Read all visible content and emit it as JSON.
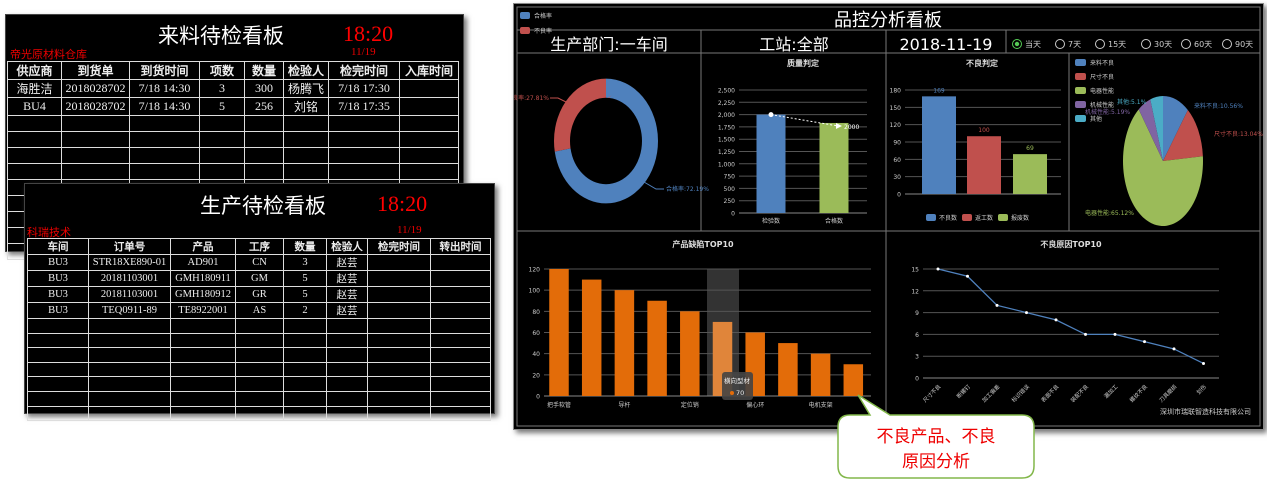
{
  "incoming_board": {
    "title": "来料待检看板",
    "time": "18:20",
    "warehouse": "帝光原材料仓库",
    "date": "11/19",
    "columns": [
      "供应商",
      "到货单",
      "到货时间",
      "项数",
      "数量",
      "检验人",
      "检完时间",
      "入库时间"
    ],
    "rows": [
      [
        "海胜洁",
        "2018028702",
        "7/18 14:30",
        "3",
        "300",
        "杨腾飞",
        "7/18 17:30",
        ""
      ],
      [
        "BU4",
        "2018028702",
        "7/18 14:30",
        "5",
        "256",
        "刘铭",
        "7/18 17:35",
        ""
      ]
    ]
  },
  "production_board": {
    "title": "生产待检看板",
    "time": "18:20",
    "company": "科瑞技术",
    "date": "11/19",
    "columns": [
      "车间",
      "订单号",
      "产品",
      "工序",
      "数量",
      "检验人",
      "检完时间",
      "转出时间"
    ],
    "rows": [
      [
        "BU3",
        "STR18XE890-01",
        "AD901",
        "CN",
        "3",
        "赵芸",
        "",
        ""
      ],
      [
        "BU3",
        "20181103001",
        "GMH180911",
        "GM",
        "5",
        "赵芸",
        "",
        ""
      ],
      [
        "BU3",
        "20181103001",
        "GMH180912",
        "GR",
        "5",
        "赵芸",
        "",
        ""
      ],
      [
        "BU3",
        "TEQ0911-89",
        "TE8922001",
        "AS",
        "2",
        "赵芸",
        "",
        ""
      ]
    ]
  },
  "dashboard": {
    "title": "品控分析看板",
    "department": "生产部门:一车间",
    "station": "工站:全部",
    "date": "2018-11-19",
    "ranges": [
      {
        "label": "当天",
        "selected": true
      },
      {
        "label": "7天",
        "selected": false
      },
      {
        "label": "15天",
        "selected": false
      },
      {
        "label": "30天",
        "selected": false
      },
      {
        "label": "60天",
        "selected": false
      },
      {
        "label": "90天",
        "selected": false
      }
    ],
    "footer": "深圳市瑞联智造科技有限公司"
  },
  "chart_data": [
    {
      "type": "pie",
      "donut": true,
      "legend": "top-left",
      "slices": [
        {
          "name": "合格率",
          "value": 72.19,
          "label": "合格率:72.19%",
          "color": "#4f81bd"
        },
        {
          "name": "不良率",
          "value": 27.81,
          "label": "不良率:27.81%",
          "color": "#c0504d"
        }
      ]
    },
    {
      "type": "bar",
      "title": "质量判定",
      "categories": [
        "检验数",
        "合格数"
      ],
      "values": [
        2000,
        1830
      ],
      "colors": [
        "#4f81bd",
        "#9bbb59"
      ],
      "ylim": [
        0,
        2500
      ],
      "yticks": [
        "0",
        "250",
        "500",
        "750",
        "1,000",
        "1,250",
        "1,500",
        "1,750",
        "2,000",
        "2,250",
        "2,500"
      ],
      "annotation": "2000",
      "grid": true
    },
    {
      "type": "bar",
      "title": "不良判定",
      "categories": [
        "不良数",
        "返工数",
        "报废数"
      ],
      "values": [
        169,
        100,
        69
      ],
      "data_labels": [
        "169",
        "100",
        "69"
      ],
      "colors": [
        "#4f81bd",
        "#c0504d",
        "#9bbb59"
      ],
      "ylim": [
        0,
        180
      ],
      "yticks": [
        "0",
        "30",
        "60",
        "90",
        "120",
        "150",
        "180"
      ],
      "legend": "bottom",
      "grid": true
    },
    {
      "type": "pie",
      "legend": "top-left",
      "slices": [
        {
          "name": "来料不良",
          "value": 10.56,
          "label": "来料不良:10.56%",
          "color": "#4f81bd"
        },
        {
          "name": "尺寸不良",
          "value": 13.04,
          "label": "尺寸不良:13.04%",
          "color": "#c0504d"
        },
        {
          "name": "电器性能",
          "value": 65.12,
          "label": "电器性能:65.12%",
          "color": "#9bbb59"
        },
        {
          "name": "机械性能",
          "value": 5.19,
          "label": "机械性能:5.19%",
          "color": "#8064a2"
        },
        {
          "name": "其他",
          "value": 5.1,
          "label": "其他:5.1%",
          "color": "#4bacc6"
        }
      ]
    },
    {
      "type": "bar",
      "title": "产品缺陷TOP10",
      "categories": [
        "把手软管",
        "",
        "导杆",
        "",
        "定位销",
        "横向型材",
        "偏心环",
        "",
        "电机支架",
        ""
      ],
      "values": [
        120,
        110,
        100,
        90,
        80,
        70,
        60,
        50,
        40,
        30
      ],
      "color": "#e36c09",
      "ylim": [
        0,
        120
      ],
      "yticks": [
        "0",
        "20",
        "40",
        "60",
        "80",
        "100",
        "120"
      ],
      "highlight_index": 5,
      "tooltip": {
        "title": "横向型材",
        "value": "70"
      },
      "grid": true
    },
    {
      "type": "line",
      "title": "不良原因TOP10",
      "categories": [
        "尺寸不良",
        "断螺钉",
        "加工偏差",
        "标识错误",
        "表面不良",
        "装配不良",
        "漏加工",
        "螺纹不良",
        "刀具磨损",
        "划伤"
      ],
      "values": [
        15,
        14,
        10,
        9,
        8,
        6,
        6,
        5,
        4,
        2
      ],
      "color": "#4f81bd",
      "ylim": [
        0,
        15
      ],
      "yticks": [
        "0",
        "3",
        "6",
        "9",
        "12",
        "15"
      ],
      "grid": true
    }
  ],
  "callout": {
    "line1": "不良产品、不良",
    "line2": "原因分析"
  }
}
